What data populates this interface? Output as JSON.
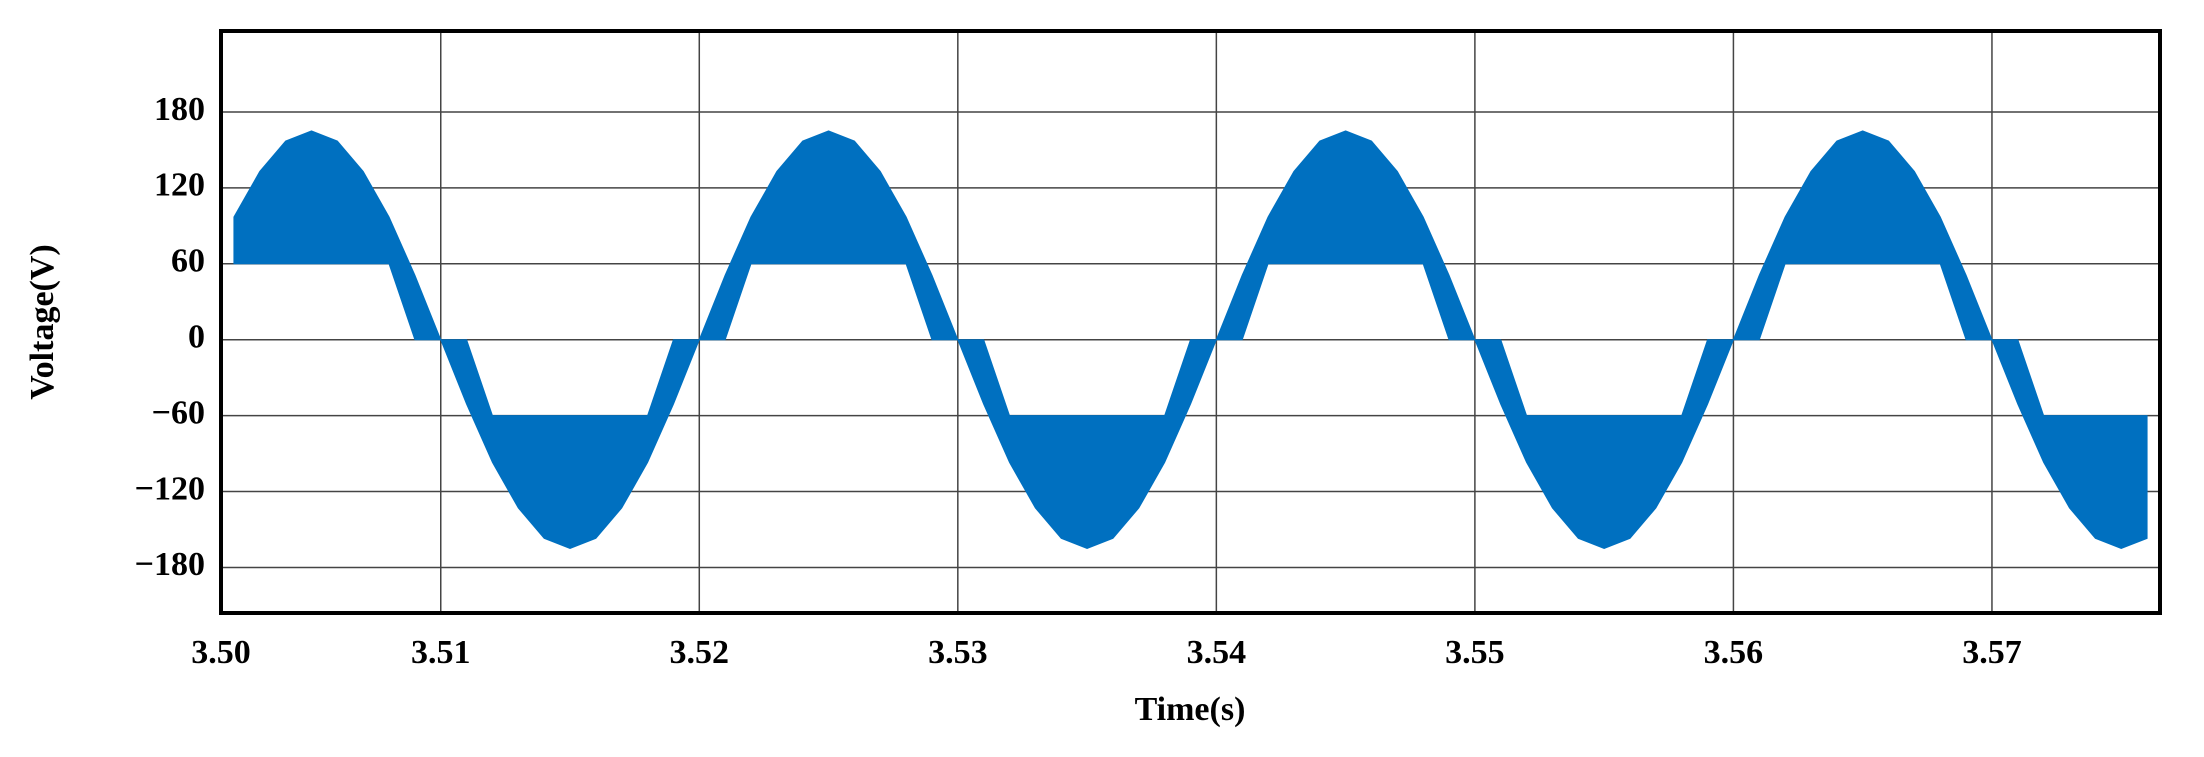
{
  "chart_data": {
    "type": "band",
    "x_label": "Time(s)",
    "y_label": "Voltage(V)",
    "x": [
      3.502,
      3.503,
      3.504,
      3.505,
      3.506,
      3.507,
      3.508,
      3.509,
      3.51,
      3.511,
      3.512,
      3.513,
      3.514,
      3.515,
      3.516,
      3.517,
      3.518,
      3.519,
      3.52,
      3.521,
      3.522,
      3.523,
      3.524,
      3.525,
      3.526,
      3.527,
      3.528,
      3.529,
      3.53,
      3.531,
      3.532,
      3.533,
      3.534,
      3.535,
      3.536,
      3.537,
      3.538,
      3.539,
      3.54,
      3.541,
      3.542,
      3.543,
      3.544,
      3.545,
      3.546,
      3.547,
      3.548,
      3.549,
      3.55,
      3.551,
      3.552,
      3.553,
      3.554,
      3.555,
      3.556,
      3.557,
      3.558,
      3.559,
      3.56,
      3.561,
      3.562,
      3.563,
      3.564,
      3.565,
      3.566,
      3.567,
      3.568,
      3.569,
      3.57,
      3.571,
      3.572,
      3.573,
      3.574,
      3.575,
      3.576
    ],
    "series": [
      {
        "color": "#0070c0",
        "values": [
          97,
          133,
          157,
          165,
          157,
          133,
          97,
          51,
          0,
          -51,
          -97,
          -133,
          -157,
          -165,
          -157,
          -133,
          -97,
          -51,
          0,
          51,
          97,
          133,
          157,
          165,
          157,
          133,
          97,
          51,
          0,
          -51,
          -97,
          -133,
          -157,
          -165,
          -157,
          -133,
          -97,
          -51,
          0,
          51,
          97,
          133,
          157,
          165,
          157,
          133,
          97,
          51,
          0,
          -51,
          -97,
          -133,
          -157,
          -165,
          -157,
          -133,
          -97,
          -51,
          0,
          51,
          97,
          133,
          157,
          165,
          157,
          133,
          97,
          51,
          0,
          -51,
          -97,
          -133,
          -157,
          -165,
          -157
        ]
      },
      {
        "color": "#0070c0",
        "values": [
          60,
          60,
          60,
          60,
          60,
          60,
          60,
          0,
          0,
          0,
          -60,
          -60,
          -60,
          -60,
          -60,
          -60,
          -60,
          0,
          0,
          0,
          60,
          60,
          60,
          60,
          60,
          60,
          60,
          0,
          0,
          0,
          -60,
          -60,
          -60,
          -60,
          -60,
          -60,
          -60,
          0,
          0,
          0,
          60,
          60,
          60,
          60,
          60,
          60,
          60,
          0,
          0,
          0,
          -60,
          -60,
          -60,
          -60,
          -60,
          -60,
          -60,
          0,
          0,
          0,
          60,
          60,
          60,
          60,
          60,
          60,
          60,
          0,
          0,
          0,
          -60,
          -60,
          -60,
          -60,
          -60
        ]
      }
    ],
    "xlim": [
      3.5015,
      3.5765
    ],
    "xticks": [
      {
        "value": 3.5015,
        "label": "3.50"
      },
      3.51,
      3.52,
      3.53,
      3.54,
      3.55,
      3.56,
      3.57
    ],
    "ylim": [
      -216,
      244
    ],
    "yticks": [
      180,
      120,
      60,
      0,
      {
        "value": -60,
        "label": "−60"
      },
      {
        "value": -120,
        "label": "−120"
      },
      {
        "value": -180,
        "label": "−180"
      }
    ],
    "grid": true
  }
}
